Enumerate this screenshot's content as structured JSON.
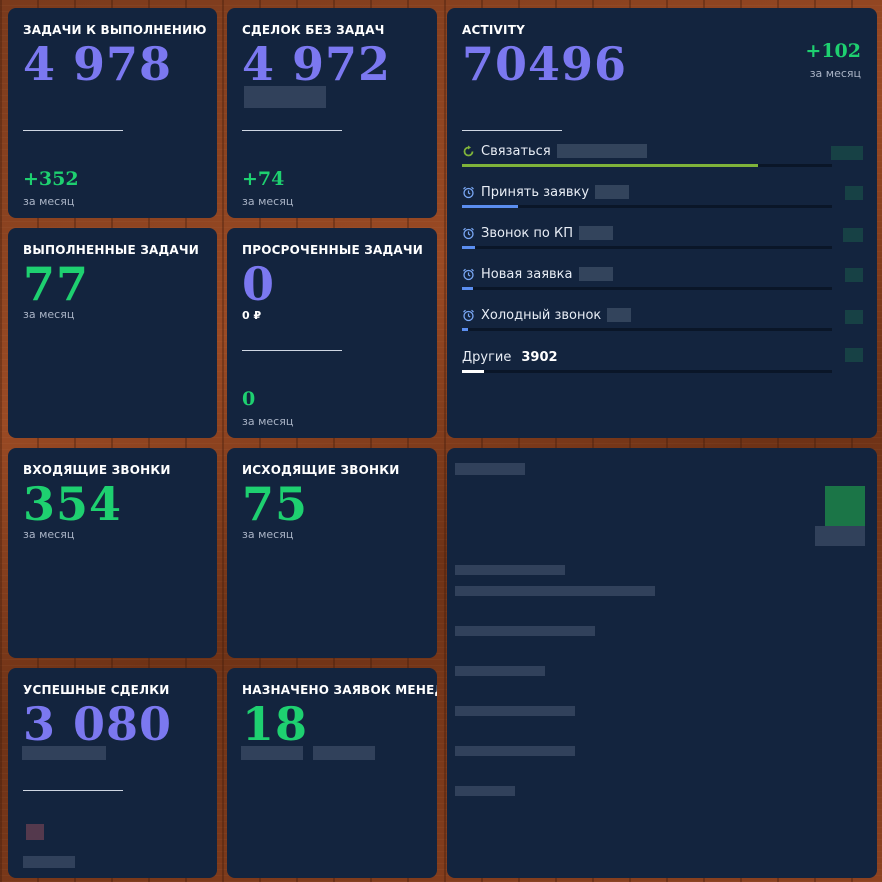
{
  "cards": {
    "todo": {
      "title": "ЗАДАЧИ К ВЫПОЛНЕНИЮ",
      "value": "4 978",
      "delta": "+352",
      "period": "за месяц"
    },
    "no_tasks": {
      "title": "СДЕЛОК БЕЗ ЗАДАЧ",
      "value": "4 972",
      "delta": "+74",
      "period": "за месяц"
    },
    "done": {
      "title": "ВЫПОЛНЕННЫЕ ЗАДАЧИ",
      "value": "77",
      "period": "за месяц"
    },
    "overdue": {
      "title": "ПРОСРОЧЕННЫЕ ЗАДАЧИ",
      "value": "0",
      "amount": "0 ₽",
      "delta": "0",
      "period": "за месяц"
    },
    "incoming": {
      "title": "ВХОДЯЩИЕ ЗВОНКИ",
      "value": "354",
      "period": "за месяц"
    },
    "outgoing": {
      "title": "ИСХОДЯЩИЕ ЗВОНКИ",
      "value": "75",
      "period": "за месяц"
    },
    "success": {
      "title": "УСПЕШНЫЕ СДЕЛКИ",
      "value": "3 080"
    },
    "assigned": {
      "title": "НАЗНАЧЕНО ЗАЯВОК МЕНЕД",
      "value": "18"
    }
  },
  "activity": {
    "title": "ACTIVITY",
    "value": "70496",
    "delta": "+102",
    "period": "за месяц",
    "items": [
      {
        "label": "Связаться",
        "icon": "refresh-icon",
        "fill": 0.8,
        "color": "#7fb33a"
      },
      {
        "label": "Принять заявку",
        "icon": "alarm-clock-icon",
        "fill": 0.15,
        "color": "#5b8ef0"
      },
      {
        "label": "Звонок по КП",
        "icon": "alarm-clock-icon",
        "fill": 0.035,
        "color": "#5b8ef0"
      },
      {
        "label": "Новая заявка",
        "icon": "alarm-clock-icon",
        "fill": 0.03,
        "color": "#5b8ef0"
      },
      {
        "label": "Холодный звонок",
        "icon": "alarm-clock-icon",
        "fill": 0.015,
        "color": "#5b8ef0"
      }
    ],
    "other": {
      "label": "Другие",
      "count": "3902",
      "fill": 0.06,
      "color": "#ffffff"
    }
  },
  "colors": {
    "card": "#13243e",
    "violet": "#7b78f0",
    "green": "#1ed070",
    "text": "#ffffff",
    "muted": "#aab4c6"
  }
}
